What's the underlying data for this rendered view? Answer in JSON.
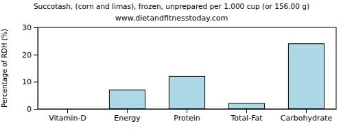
{
  "chart_data": {
    "type": "bar",
    "title": "Succotash, (corn and limas), frozen, unprepared per 1.000 cup (or 156.00 g)",
    "subtitle": "www.dietandfitnesstoday.com",
    "y_label": "Percentage of RDH (%)",
    "categories": [
      "Vitamin-D",
      "Energy",
      "Protein",
      "Total-Fat",
      "Carbohydrate"
    ],
    "values": [
      0,
      7,
      12,
      2,
      24
    ],
    "color": "#add8e6",
    "ylim": [
      0,
      30
    ],
    "yticks": [
      0,
      10,
      20,
      30
    ],
    "grid": false
  }
}
